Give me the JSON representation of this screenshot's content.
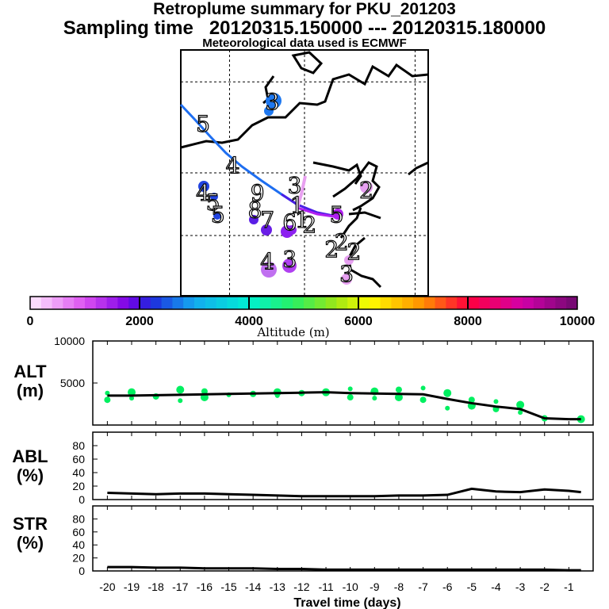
{
  "header": {
    "title": "Retroplume summary for PKU_201203",
    "sampling": "Sampling time   20120315.150000 --- 20120315.180000",
    "met": "Meteorological data used is ECMWF"
  },
  "colors": {
    "green": "#00f060",
    "line": "#000000",
    "traj_blue": "#1e6ef0",
    "traj_violet": "#4a1ee6",
    "traj_magenta": "#b020f0",
    "traj_pink": "#e8a0f0"
  },
  "chart_data": [
    {
      "id": "map",
      "type": "scatter",
      "title": "Retroplume summary for PKU_201203",
      "day_markers": [
        {
          "label": "5",
          "x": 0.09,
          "y": 0.3
        },
        {
          "label": "4",
          "x": 0.21,
          "y": 0.47
        },
        {
          "label": "3",
          "x": 0.37,
          "y": 0.21
        },
        {
          "label": "4",
          "x": 0.09,
          "y": 0.58
        },
        {
          "label": "5",
          "x": 0.13,
          "y": 0.62
        },
        {
          "label": "5",
          "x": 0.15,
          "y": 0.67
        },
        {
          "label": "9",
          "x": 0.31,
          "y": 0.58
        },
        {
          "label": "8",
          "x": 0.3,
          "y": 0.65
        },
        {
          "label": "7",
          "x": 0.35,
          "y": 0.69
        },
        {
          "label": "6",
          "x": 0.44,
          "y": 0.7
        },
        {
          "label": "3",
          "x": 0.46,
          "y": 0.55
        },
        {
          "label": "1",
          "x": 0.47,
          "y": 0.63
        },
        {
          "label": "1",
          "x": 0.49,
          "y": 0.69
        },
        {
          "label": "2",
          "x": 0.52,
          "y": 0.71
        },
        {
          "label": "2",
          "x": 0.75,
          "y": 0.57
        },
        {
          "label": "5",
          "x": 0.63,
          "y": 0.67
        },
        {
          "label": "2",
          "x": 0.65,
          "y": 0.78
        },
        {
          "label": "2",
          "x": 0.61,
          "y": 0.81
        },
        {
          "label": "2",
          "x": 0.7,
          "y": 0.82
        },
        {
          "label": "4",
          "x": 0.35,
          "y": 0.86
        },
        {
          "label": "3",
          "x": 0.44,
          "y": 0.85
        },
        {
          "label": "3",
          "x": 0.67,
          "y": 0.91
        }
      ],
      "colorbar": {
        "min": 0,
        "max": 10000,
        "ticks": [
          "0",
          "2000",
          "4000",
          "6000",
          "8000",
          "10000"
        ],
        "label": "Altitude (m)"
      }
    },
    {
      "id": "alt",
      "type": "line",
      "ylabel": "ALT\n(m)",
      "ylim": [
        0,
        10000
      ],
      "yticks": [
        "10000",
        "5000"
      ],
      "x": [
        -20,
        -19,
        -18,
        -17,
        -16,
        -15,
        -14,
        -13,
        -12,
        -11,
        -10,
        -9,
        -8,
        -7,
        -6,
        -5,
        -4,
        -3,
        -2,
        -1,
        -0.5
      ],
      "y": [
        3500,
        3500,
        3550,
        3600,
        3650,
        3700,
        3750,
        3800,
        3850,
        3900,
        3800,
        3750,
        3700,
        3650,
        3100,
        2600,
        2200,
        1900,
        800,
        700,
        700
      ],
      "scatter": {
        "x": [
          -20,
          -20,
          -19,
          -19,
          -18,
          -17,
          -17,
          -16,
          -16,
          -15,
          -14,
          -13,
          -13,
          -12,
          -11,
          -10,
          -10,
          -9,
          -9,
          -8,
          -8,
          -7,
          -7,
          -6,
          -6,
          -5,
          -5,
          -4,
          -4,
          -3,
          -3,
          -2,
          -0.5
        ],
        "y": [
          3800,
          3000,
          3900,
          3200,
          3400,
          4200,
          2900,
          4000,
          3300,
          3600,
          3700,
          3900,
          3500,
          3800,
          3900,
          4300,
          3300,
          4000,
          3200,
          4200,
          3300,
          4400,
          3000,
          3800,
          2000,
          3000,
          2300,
          2800,
          1900,
          2400,
          1500,
          800,
          700
        ]
      }
    },
    {
      "id": "abl",
      "type": "line",
      "ylabel": "ABL\n(%)",
      "ylim": [
        0,
        100
      ],
      "yticks": [
        "80",
        "60",
        "40",
        "20",
        "0"
      ],
      "x": [
        -20,
        -19,
        -18,
        -17,
        -16,
        -15,
        -14,
        -13,
        -12,
        -11,
        -10,
        -9,
        -8,
        -7,
        -6,
        -5,
        -4,
        -3,
        -2,
        -1,
        -0.5
      ],
      "y": [
        10,
        9,
        8,
        9,
        9,
        8,
        7,
        6,
        5,
        5,
        5,
        5,
        6,
        6,
        7,
        16,
        12,
        11,
        15,
        13,
        11
      ]
    },
    {
      "id": "str",
      "type": "line",
      "ylabel": "STR\n(%)",
      "ylim": [
        0,
        100
      ],
      "yticks": [
        "80",
        "60",
        "40",
        "20",
        "0"
      ],
      "xlabel": "Travel time (days)",
      "xticks": [
        "-20",
        "-19",
        "-18",
        "-17",
        "-16",
        "-15",
        "-14",
        "-13",
        "-12",
        "-11",
        "-10",
        "-9",
        "-8",
        "-7",
        "-6",
        "-5",
        "-4",
        "-3",
        "-2",
        "-1"
      ],
      "x": [
        -20,
        -19,
        -18,
        -17,
        -16,
        -15,
        -14,
        -13,
        -12,
        -11,
        -10,
        -9,
        -8,
        -7,
        -6,
        -5,
        -4,
        -3,
        -2,
        -1,
        -0.5
      ],
      "y": [
        6,
        6,
        5,
        5,
        4,
        4,
        4,
        3,
        3,
        2,
        2,
        2,
        2,
        2,
        2,
        2,
        2,
        2,
        2,
        1,
        1
      ]
    }
  ]
}
